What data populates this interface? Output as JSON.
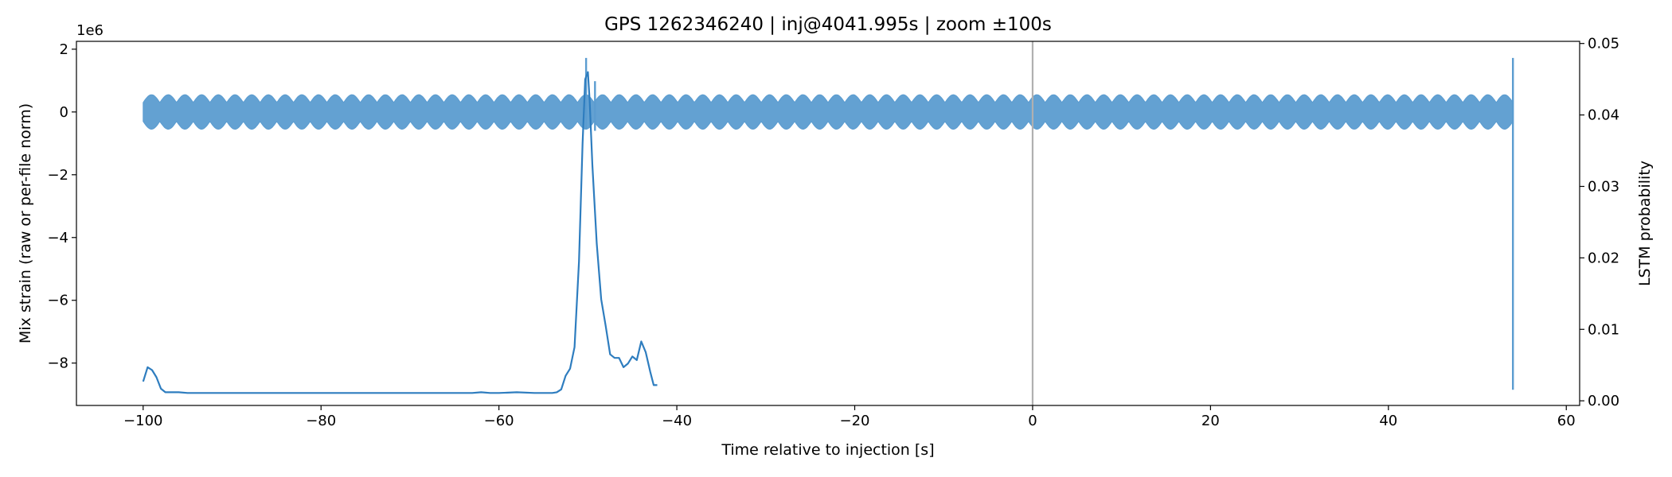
{
  "chart_data": {
    "type": "line",
    "title": "GPS 1262346240 | inj@4041.995s | zoom ±100s",
    "xlabel": "Time relative to injection [s]",
    "ylabel_left": "Mix strain (raw or per-file norm)",
    "ylabel_right": "LSTM probability",
    "left_offset_label": "1e6",
    "xlim": [
      -107.5,
      61.5
    ],
    "ylim_left": [
      -9.35,
      2.25
    ],
    "ylim_right": [
      -0.00065,
      0.0503
    ],
    "x_ticks": [
      -100,
      -80,
      -60,
      -40,
      -20,
      0,
      20,
      40,
      60
    ],
    "x_tick_labels": [
      "−100",
      "−80",
      "−60",
      "−40",
      "−20",
      "0",
      "20",
      "40",
      "60"
    ],
    "left_ticks": [
      2,
      0,
      -2,
      -4,
      -6,
      -8
    ],
    "left_tick_labels": [
      "2",
      "0",
      "−2",
      "−4",
      "−6",
      "−8"
    ],
    "right_ticks": [
      0.05,
      0.04,
      0.03,
      0.02,
      0.01,
      0.0
    ],
    "right_tick_labels": [
      "0.05",
      "0.04",
      "0.03",
      "0.02",
      "0.01",
      "0.00"
    ],
    "injection_marker_x": 0,
    "grid": false,
    "colors": {
      "strain": "#5b9cd0",
      "probability": "#2e7dbf",
      "marker": "#b0b0b0"
    },
    "strain_envelope": {
      "x_start": -100,
      "x_end": 54,
      "base_amplitude": 0.3,
      "modulation": 0.25,
      "cycles": 82,
      "spikes": [
        {
          "x": -50.2,
          "min": -0.55,
          "max": 1.72
        },
        {
          "x": -49.2,
          "min": -0.6,
          "max": 0.98
        },
        {
          "x": 54.0,
          "min": -8.85,
          "max": 1.72
        }
      ]
    },
    "series": [
      {
        "axis": "right",
        "x": [
          -100,
          -99.5,
          -99,
          -98.5,
          -98,
          -97.5,
          -97,
          -96,
          -95,
          -90,
          -80,
          -70,
          -65,
          -63,
          -62,
          -61,
          -60,
          -58,
          -56,
          -55,
          -54,
          -53.5,
          -53,
          -52.5,
          -52,
          -51.5,
          -51,
          -50.6,
          -50.3,
          -50,
          -49.8,
          -49.5,
          -49,
          -48.5,
          -48,
          -47.5,
          -47,
          -46.5,
          -46,
          -45.5,
          -45,
          -44.5,
          -44,
          -43.5,
          -43,
          -42.6,
          -42.2
        ],
        "y": [
          0.0027,
          0.0047,
          0.0043,
          0.0033,
          0.0017,
          0.0012,
          0.0012,
          0.0012,
          0.0011,
          0.0011,
          0.0011,
          0.0011,
          0.0011,
          0.0011,
          0.0012,
          0.0011,
          0.0011,
          0.0012,
          0.0011,
          0.0011,
          0.0011,
          0.0012,
          0.0016,
          0.0035,
          0.0045,
          0.0075,
          0.0195,
          0.036,
          0.045,
          0.046,
          0.042,
          0.033,
          0.022,
          0.0142,
          0.0105,
          0.0065,
          0.006,
          0.006,
          0.0047,
          0.0052,
          0.0062,
          0.0057,
          0.0083,
          0.0068,
          0.0041,
          0.0022,
          0.0022
        ]
      }
    ]
  }
}
